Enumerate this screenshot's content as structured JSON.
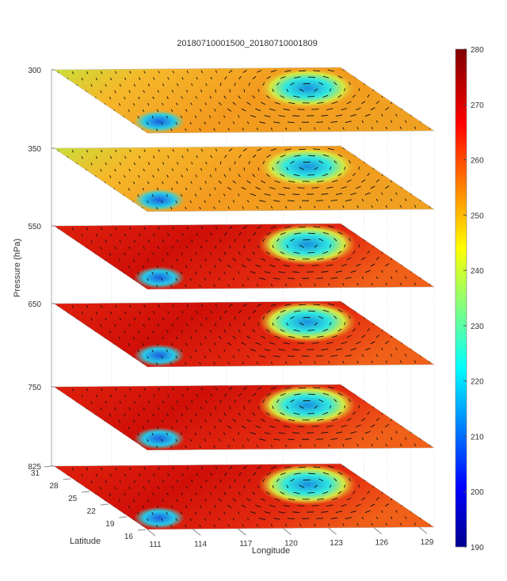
{
  "chart_data": {
    "type": "surface-3d-slices",
    "title": "20180710001500_20180710001809",
    "zlabel": "Pressure (hPa)",
    "xlabel": "Longitude",
    "ylabel": "Latitude",
    "pressure_levels": [
      "300",
      "350",
      "550",
      "650",
      "750",
      "825"
    ],
    "level_kind": [
      "warm-mixed",
      "warm-mixed",
      "hot",
      "hot",
      "hot",
      "hot"
    ],
    "latitude_ticks": [
      "31",
      "28",
      "25",
      "22",
      "19",
      "16"
    ],
    "longitude_ticks": [
      "111",
      "114",
      "117",
      "120",
      "123",
      "126",
      "129"
    ],
    "xlim": [
      111,
      130
    ],
    "ylim": [
      16,
      31
    ],
    "colorbar": {
      "range": [
        190,
        280
      ],
      "ticks": [
        "280",
        "270",
        "260",
        "250",
        "240",
        "230",
        "220",
        "210",
        "200",
        "190"
      ],
      "colormap": "jet"
    },
    "features": {
      "cyclone_center": {
        "lon": 125,
        "lat": 26
      },
      "cold_spot": {
        "lon": 113,
        "lat": 17
      }
    }
  }
}
